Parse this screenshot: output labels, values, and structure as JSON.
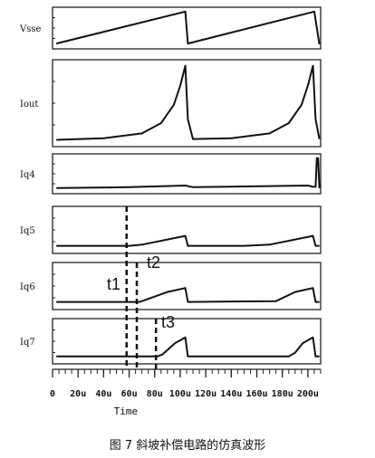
{
  "chart_data": {
    "type": "line",
    "caption": "图 7   斜坡补偿电路的仿真波形",
    "xlabel": "Time",
    "xlim": [
      0,
      210
    ],
    "x_ticks": [
      {
        "value": 0,
        "label": "0"
      },
      {
        "value": 20,
        "label": "20u"
      },
      {
        "value": 40,
        "label": "40u"
      },
      {
        "value": 60,
        "label": "60u"
      },
      {
        "value": 80,
        "label": "80u"
      },
      {
        "value": 100,
        "label": "100u"
      },
      {
        "value": 120,
        "label": "120u"
      },
      {
        "value": 140,
        "label": "140u"
      },
      {
        "value": 160,
        "label": "160u"
      },
      {
        "value": 180,
        "label": "180u"
      },
      {
        "value": 200,
        "label": "200u"
      }
    ],
    "panels": [
      {
        "label": "Vsse",
        "ylim": [
          0,
          1
        ],
        "x": [
          3,
          104,
          106,
          205,
          209
        ],
        "y": [
          0.05,
          0.98,
          0.05,
          0.98,
          0.03
        ]
      },
      {
        "label": "Iout",
        "ylim": [
          0,
          1
        ],
        "x": [
          3,
          40,
          70,
          85,
          95,
          100,
          104,
          106,
          110,
          140,
          170,
          185,
          195,
          200,
          204,
          206,
          209
        ],
        "y": [
          0.04,
          0.06,
          0.12,
          0.25,
          0.48,
          0.72,
          0.97,
          0.3,
          0.05,
          0.06,
          0.12,
          0.25,
          0.48,
          0.72,
          0.97,
          0.3,
          0.05
        ]
      },
      {
        "label": "Iq4",
        "ylim": [
          0,
          1
        ],
        "x": [
          3,
          60,
          104,
          110,
          150,
          200,
          204,
          206,
          207,
          208,
          209
        ],
        "y": [
          0.06,
          0.09,
          0.14,
          0.09,
          0.11,
          0.14,
          0.1,
          0.1,
          0.98,
          0.98,
          0.06
        ]
      },
      {
        "label": "Iq5",
        "ylim": [
          0,
          1
        ],
        "x": [
          3,
          60,
          70,
          104,
          106,
          150,
          170,
          204,
          206,
          209
        ],
        "y": [
          0.1,
          0.1,
          0.13,
          0.35,
          0.1,
          0.1,
          0.13,
          0.35,
          0.1,
          0.1
        ]
      },
      {
        "label": "Iq6",
        "ylim": [
          0,
          1
        ],
        "x": [
          3,
          68,
          70,
          90,
          104,
          106,
          175,
          190,
          204,
          206,
          209
        ],
        "y": [
          0.1,
          0.1,
          0.12,
          0.35,
          0.45,
          0.1,
          0.12,
          0.35,
          0.45,
          0.1,
          0.1
        ]
      },
      {
        "label": "Iq7",
        "ylim": [
          0,
          1
        ],
        "x": [
          3,
          82,
          86,
          96,
          104,
          106,
          185,
          190,
          196,
          204,
          206,
          209
        ],
        "y": [
          0.1,
          0.1,
          0.15,
          0.45,
          0.6,
          0.1,
          0.1,
          0.2,
          0.45,
          0.6,
          0.1,
          0.1
        ]
      }
    ],
    "markers": [
      {
        "label": "t1",
        "x": 58
      },
      {
        "label": "t2",
        "x": 66
      },
      {
        "label": "t3",
        "x": 81
      }
    ]
  }
}
